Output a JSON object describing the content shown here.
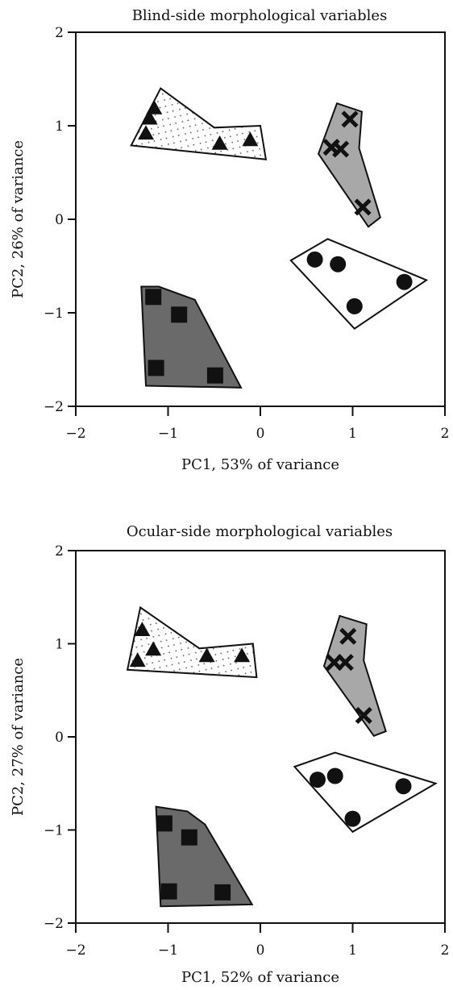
{
  "chart_data": [
    {
      "type": "scatter",
      "title": "Blind-side morphological variables",
      "xlabel": "PC1, 53% of variance",
      "ylabel": "PC2, 26% of variance",
      "xlim": [
        -2,
        2
      ],
      "ylim": [
        -2,
        2
      ],
      "xticks": [
        -2,
        -1,
        0,
        1,
        2
      ],
      "yticks": [
        -2,
        -1,
        0,
        1,
        2
      ],
      "xtick_labels": [
        "−2",
        "−1",
        "0",
        "1",
        "2"
      ],
      "ytick_labels": [
        "−2",
        "−1",
        "0",
        "1",
        "2"
      ],
      "grid": false,
      "legend": "none",
      "groups": [
        {
          "marker": "triangle",
          "hull_fill": "dotted",
          "points": [
            [
              -1.15,
              1.19
            ],
            [
              -1.2,
              1.08
            ],
            [
              -1.24,
              0.92
            ],
            [
              -0.44,
              0.81
            ],
            [
              -0.11,
              0.85
            ]
          ],
          "hull": [
            [
              -1.08,
              1.4
            ],
            [
              -0.5,
              0.98
            ],
            [
              0.0,
              1.0
            ],
            [
              0.06,
              0.64
            ],
            [
              -1.4,
              0.79
            ]
          ]
        },
        {
          "marker": "x",
          "hull_fill": "#a8a8a8",
          "points": [
            [
              0.97,
              1.07
            ],
            [
              0.77,
              0.77
            ],
            [
              0.87,
              0.75
            ],
            [
              1.11,
              0.13
            ]
          ],
          "hull": [
            [
              0.83,
              1.24
            ],
            [
              1.1,
              1.15
            ],
            [
              1.07,
              0.76
            ],
            [
              1.3,
              0.02
            ],
            [
              1.17,
              -0.08
            ],
            [
              0.63,
              0.7
            ]
          ]
        },
        {
          "marker": "circle",
          "hull_fill": "#ffffff",
          "points": [
            [
              0.59,
              -0.43
            ],
            [
              0.84,
              -0.48
            ],
            [
              1.02,
              -0.93
            ],
            [
              1.56,
              -0.67
            ]
          ],
          "hull": [
            [
              0.73,
              -0.21
            ],
            [
              1.8,
              -0.65
            ],
            [
              1.02,
              -1.17
            ],
            [
              0.33,
              -0.44
            ]
          ]
        },
        {
          "marker": "square",
          "hull_fill": "#6a6a6a",
          "points": [
            [
              -1.16,
              -0.83
            ],
            [
              -0.88,
              -1.02
            ],
            [
              -1.13,
              -1.59
            ],
            [
              -0.49,
              -1.67
            ]
          ],
          "hull": [
            [
              -1.29,
              -0.72
            ],
            [
              -1.1,
              -0.72
            ],
            [
              -0.71,
              -0.86
            ],
            [
              -0.21,
              -1.8
            ],
            [
              -1.24,
              -1.78
            ]
          ]
        }
      ]
    },
    {
      "type": "scatter",
      "title": "Ocular-side morphological variables",
      "xlabel": "PC1, 52% of variance",
      "ylabel": "PC2, 27% of variance",
      "xlim": [
        -2,
        2
      ],
      "ylim": [
        -2,
        2
      ],
      "xticks": [
        -2,
        -1,
        0,
        1,
        2
      ],
      "yticks": [
        -2,
        -1,
        0,
        1,
        2
      ],
      "xtick_labels": [
        "−2",
        "−1",
        "0",
        "1",
        "2"
      ],
      "ytick_labels": [
        "−2",
        "−1",
        "0",
        "1",
        "2"
      ],
      "grid": false,
      "legend": "none",
      "groups": [
        {
          "marker": "triangle",
          "hull_fill": "dotted",
          "points": [
            [
              -1.28,
              1.15
            ],
            [
              -1.16,
              0.94
            ],
            [
              -1.33,
              0.82
            ],
            [
              -0.58,
              0.87
            ],
            [
              -0.2,
              0.87
            ]
          ],
          "hull": [
            [
              -1.3,
              1.39
            ],
            [
              -0.66,
              0.95
            ],
            [
              -0.08,
              1.0
            ],
            [
              -0.04,
              0.64
            ],
            [
              -1.44,
              0.72
            ]
          ]
        },
        {
          "marker": "x",
          "hull_fill": "#a8a8a8",
          "points": [
            [
              0.95,
              1.08
            ],
            [
              0.8,
              0.8
            ],
            [
              0.92,
              0.8
            ],
            [
              1.12,
              0.23
            ]
          ],
          "hull": [
            [
              0.86,
              1.3
            ],
            [
              1.15,
              1.21
            ],
            [
              1.12,
              0.82
            ],
            [
              1.36,
              0.06
            ],
            [
              1.23,
              0.01
            ],
            [
              0.69,
              0.76
            ]
          ]
        },
        {
          "marker": "circle",
          "hull_fill": "#ffffff",
          "points": [
            [
              0.62,
              -0.46
            ],
            [
              0.81,
              -0.42
            ],
            [
              1.0,
              -0.88
            ],
            [
              1.55,
              -0.53
            ]
          ],
          "hull": [
            [
              0.81,
              -0.17
            ],
            [
              1.9,
              -0.5
            ],
            [
              1.0,
              -1.02
            ],
            [
              0.37,
              -0.32
            ]
          ]
        },
        {
          "marker": "square",
          "hull_fill": "#6a6a6a",
          "points": [
            [
              -1.04,
              -0.93
            ],
            [
              -0.77,
              -1.08
            ],
            [
              -0.99,
              -1.66
            ],
            [
              -0.41,
              -1.67
            ]
          ],
          "hull": [
            [
              -1.13,
              -0.75
            ],
            [
              -0.79,
              -0.8
            ],
            [
              -0.6,
              -0.94
            ],
            [
              -0.09,
              -1.8
            ],
            [
              -1.08,
              -1.82
            ]
          ]
        }
      ]
    }
  ]
}
